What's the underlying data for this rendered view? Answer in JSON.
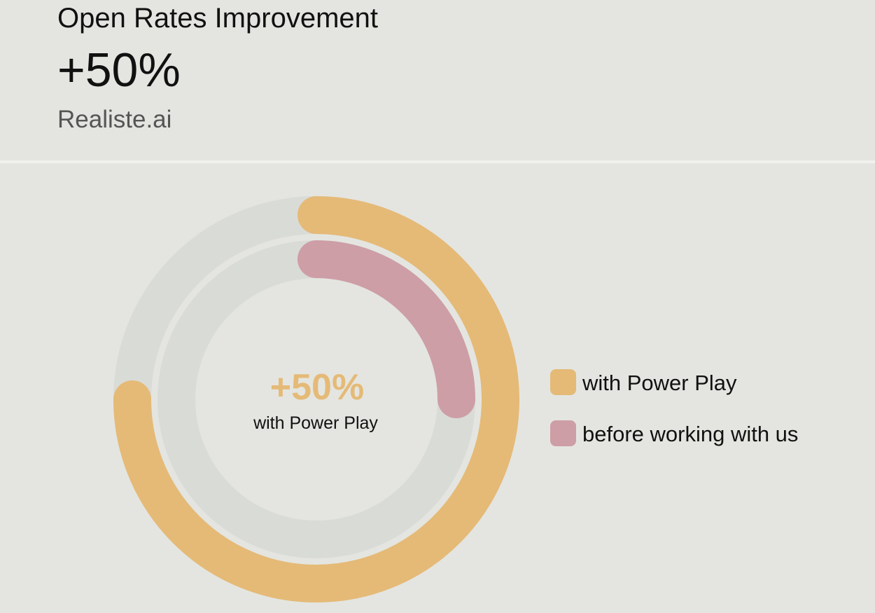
{
  "header": {
    "title": "Open Rates Improvement",
    "value": "+50%",
    "source": "Realiste.ai"
  },
  "chart_data": {
    "type": "radial-bar",
    "max": 100,
    "series": [
      {
        "name": "with Power Play",
        "value": 75,
        "color": "#e5ba77"
      },
      {
        "name": "before working with us",
        "value": 25,
        "color": "#cd9ea6"
      }
    ],
    "track_color": "#d9dbd6",
    "center": {
      "value": "+50%",
      "label": "with Power Play",
      "value_color": "#e5ba77"
    },
    "legend": "right"
  }
}
